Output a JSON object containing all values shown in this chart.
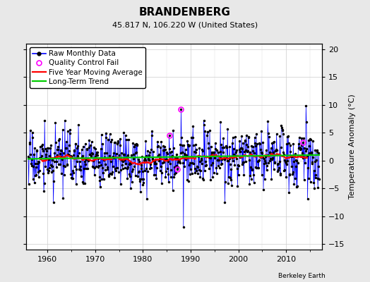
{
  "title": "BRANDENBERG",
  "subtitle": "45.817 N, 106.220 W (United States)",
  "credit": "Berkeley Earth",
  "ylabel": "Temperature Anomaly (°C)",
  "ylim": [
    -16,
    21
  ],
  "yticks": [
    -15,
    -10,
    -5,
    0,
    5,
    10,
    15,
    20
  ],
  "xlim": [
    1955.5,
    2017.5
  ],
  "xticks": [
    1960,
    1970,
    1980,
    1990,
    2000,
    2010
  ],
  "start_year": 1956,
  "end_year": 2016,
  "raw_color": "#0000ff",
  "mavg_color": "#ff0000",
  "trend_color": "#00cc00",
  "qc_color": "#ff00ff",
  "background_color": "#e8e8e8",
  "plot_bg_color": "#ffffff",
  "legend_fontsize": 7.5,
  "title_fontsize": 11,
  "subtitle_fontsize": 8,
  "seed": 17,
  "noise_std": 2.5,
  "trend_slope": 0.008,
  "trend_intercept": 0.3,
  "qc_points": [
    [
      1985.5,
      4.5
    ],
    [
      1987.2,
      -1.5
    ],
    [
      1988.0,
      9.2
    ]
  ],
  "last_qc": [
    2013.5,
    3.2
  ]
}
